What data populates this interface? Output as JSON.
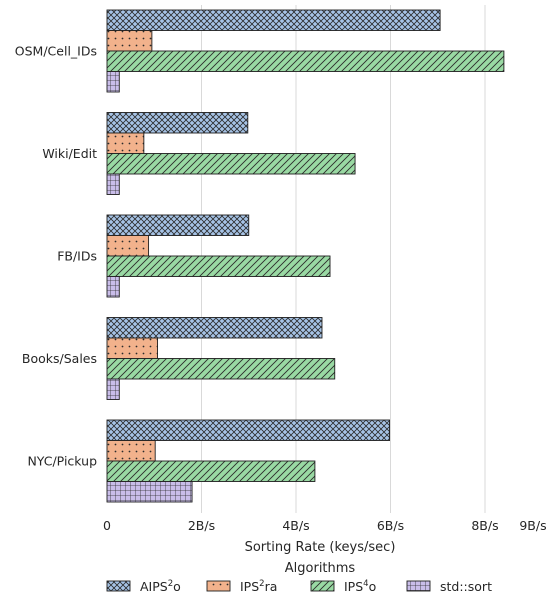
{
  "chart_data": {
    "type": "bar",
    "orientation": "horizontal",
    "categories": [
      "OSM/Cell_IDs",
      "Wiki/Edit",
      "FB/IDs",
      "Books/Sales",
      "NYC/Pickup"
    ],
    "series": [
      {
        "name": "AIPS",
        "sup": "2",
        "suffix": "o",
        "values": [
          7.05,
          2.98,
          3.0,
          4.55,
          5.98
        ],
        "color": "#a6c3e6",
        "pattern": "crosshatch"
      },
      {
        "name": "IPS",
        "sup": "2",
        "suffix": "ra",
        "values": [
          0.95,
          0.78,
          0.88,
          1.07,
          1.02
        ],
        "color": "#f2b28c",
        "pattern": "dots"
      },
      {
        "name": "IPS",
        "sup": "4",
        "suffix": "o",
        "values": [
          8.4,
          5.25,
          4.72,
          4.82,
          4.4
        ],
        "color": "#99d9a3",
        "pattern": "diagonal"
      },
      {
        "name": "std::sort",
        "sup": "",
        "suffix": "",
        "values": [
          0.26,
          0.26,
          0.26,
          0.26,
          1.8
        ],
        "color": "#c9bde9",
        "pattern": "grid"
      }
    ],
    "xticks": [
      0,
      2,
      4,
      6,
      8,
      9
    ],
    "xtick_labels": [
      "0",
      "2B/s",
      "4B/s",
      "6B/s",
      "8B/s",
      "9B/s"
    ],
    "xlim": [
      0,
      9
    ],
    "xlabel": "Sorting Rate (keys/sec)",
    "legend_title": "Algorithms",
    "legend_position": "bottom",
    "grid": "vertical"
  }
}
